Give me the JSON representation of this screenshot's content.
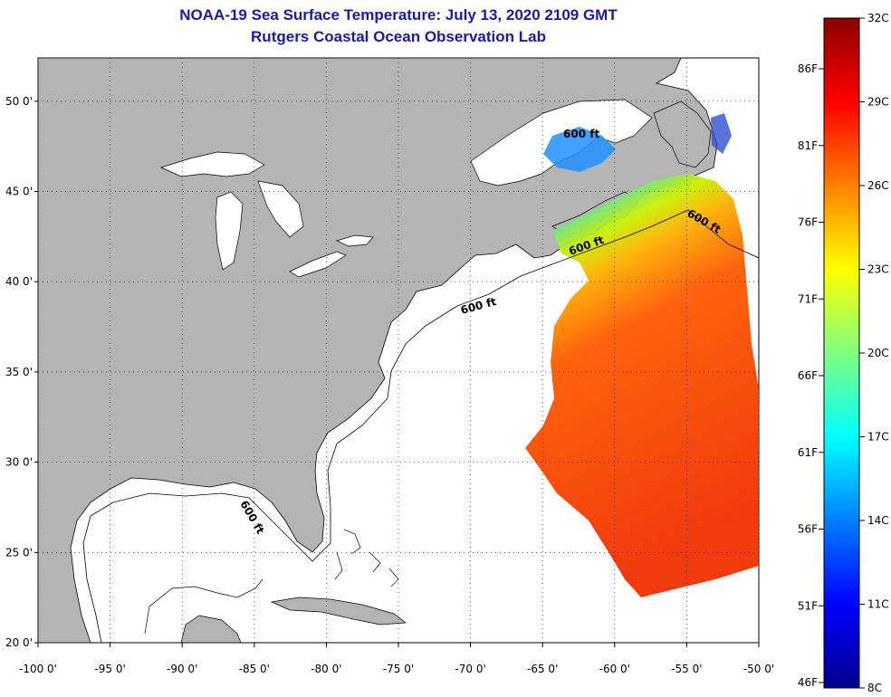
{
  "header": {
    "title": "NOAA-19 Sea Surface Temperature:  July 13, 2020 2109 GMT",
    "subtitle": "Rutgers Coastal Ocean Observation Lab"
  },
  "map": {
    "lat_labels": [
      "50 0'",
      "45 0'",
      "40 0'",
      "35 0'",
      "30 0'",
      "25 0'",
      "20 0'"
    ],
    "lon_labels": [
      "-100 0'",
      "-95 0'",
      "-90 0'",
      "-85 0'",
      "-80 0'",
      "-75 0'",
      "-70 0'",
      "-65 0'",
      "-60 0'",
      "-55 0'",
      "-50 0'"
    ],
    "isobath_label": "600 ft",
    "colors": {
      "land": "#b4b4b4",
      "ocean": "#ffffff",
      "grid": "#000000"
    }
  },
  "colorbar": {
    "celsius_labels": [
      "32C",
      "29C",
      "26C",
      "23C",
      "20C",
      "17C",
      "14C",
      "11C",
      "8C"
    ],
    "fahrenheit_labels": [
      "86F",
      "81F",
      "76F",
      "71F",
      "66F",
      "61F",
      "56F",
      "51F",
      "46F"
    ],
    "colors": [
      "#00008b",
      "#0000ff",
      "#0080ff",
      "#00ffff",
      "#80ff80",
      "#ffff00",
      "#ff8000",
      "#ff0000",
      "#8b0000"
    ]
  }
}
